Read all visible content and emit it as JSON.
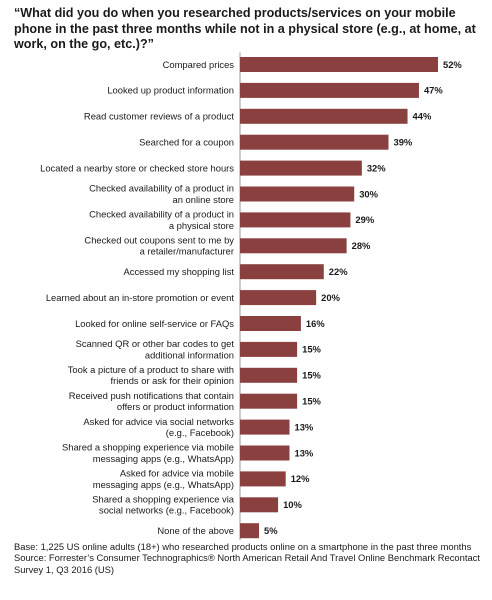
{
  "chart_data": {
    "type": "bar",
    "orientation": "horizontal",
    "title": "“What did you do when you researched products/services on your mobile phone in the past three months while not in a physical store (e.g., at home, at work, on the go, etc.)?”",
    "categories": [
      "Compared prices",
      "Looked up product information",
      "Read customer reviews of a product",
      "Searched for a coupon",
      "Located a nearby store or checked store hours",
      "Checked availability of a product in\nan online store",
      "Checked availability of a product in\na physical store",
      "Checked out coupons sent to me by\na retailer/manufacturer",
      "Accessed my shopping list",
      "Learned about an in-store promotion or event",
      "Looked for online self-service or FAQs",
      "Scanned QR or other bar codes to get\nadditional information",
      "Took a picture of a product to share with\nfriends or ask for their opinion",
      "Received push notifications that contain\noffers or product information",
      "Asked for advice via social networks\n(e.g., Facebook)",
      "Shared a shopping experience via mobile\nmessaging apps (e.g., WhatsApp)",
      "Asked for advice via mobile\nmessaging apps (e.g., WhatsApp)",
      "Shared a shopping experience via\nsocial networks (e.g., Facebook)",
      "None of the above"
    ],
    "values": [
      52,
      47,
      44,
      39,
      32,
      30,
      29,
      28,
      22,
      20,
      16,
      15,
      15,
      15,
      13,
      13,
      12,
      10,
      5
    ],
    "value_labels": [
      "52%",
      "47%",
      "44%",
      "39%",
      "32%",
      "30%",
      "29%",
      "28%",
      "22%",
      "20%",
      "16%",
      "15%",
      "15%",
      "15%",
      "13%",
      "13%",
      "12%",
      "10%",
      "5%"
    ],
    "bar_color": "#8b4040",
    "xlim": [
      0,
      52
    ],
    "grid": false,
    "legend": "none"
  },
  "footer": {
    "base": "Base: 1,225 US online adults (18+) who researched products online on a smartphone in the past three months",
    "source": "Source: Forrester’s Consumer Technographics® North American Retail And Travel Online Benchmark Recontact Survey 1, Q3 2016 (US)"
  }
}
